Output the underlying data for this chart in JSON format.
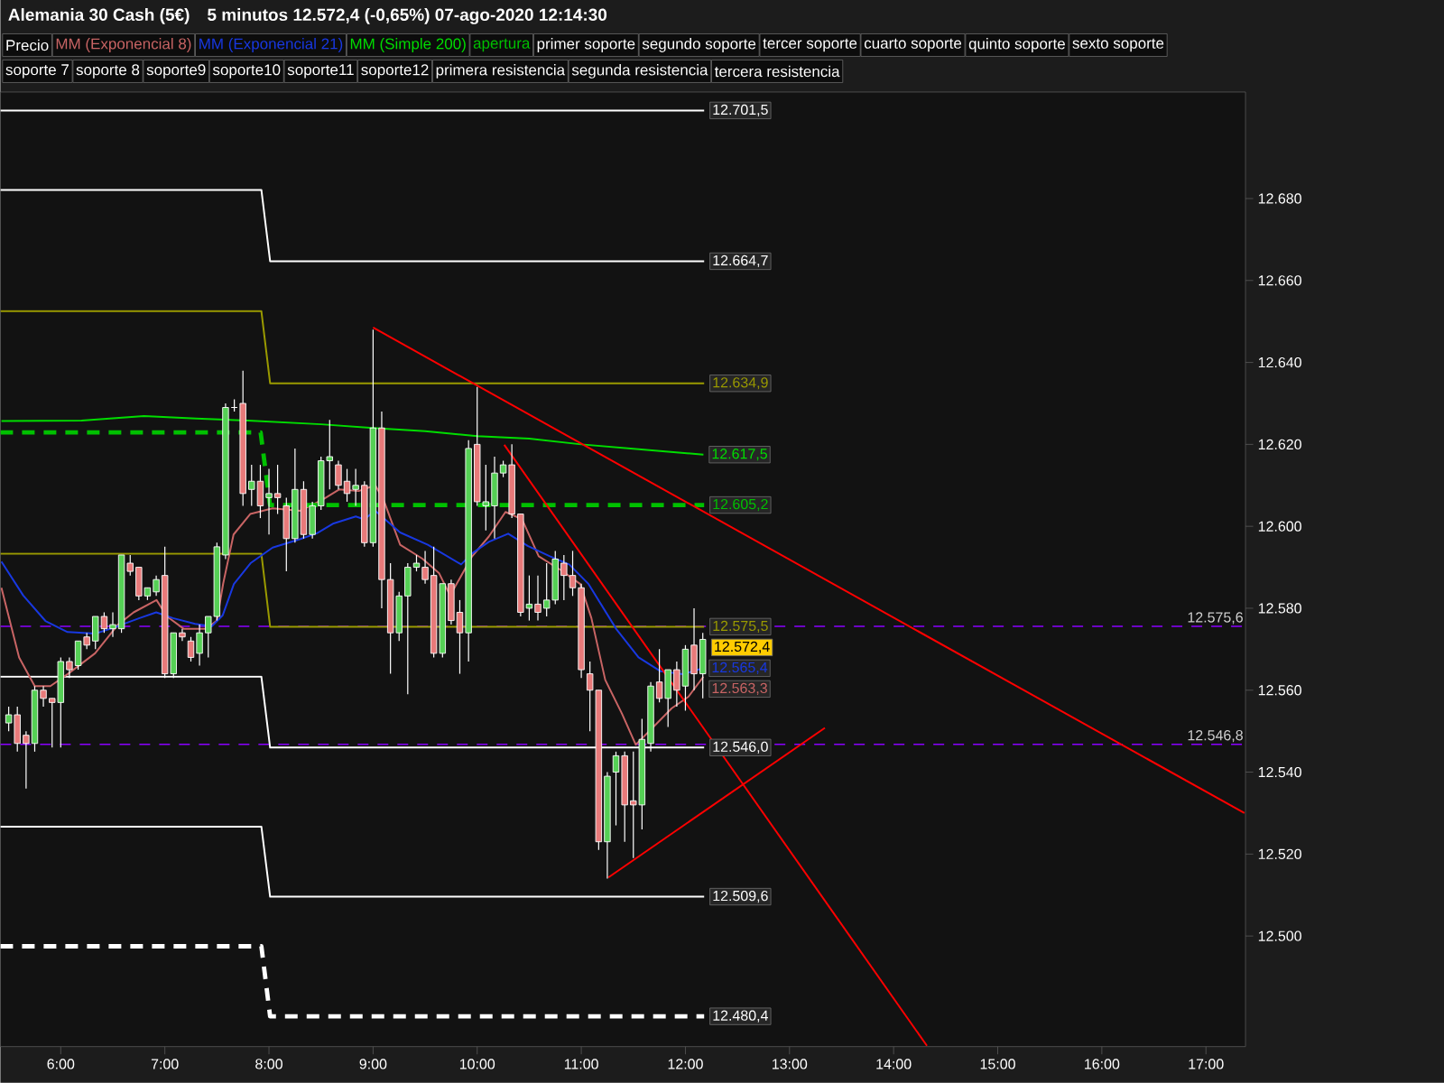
{
  "chart_data": {
    "type": "candlestick",
    "title": "Alemania 30 Cash (5€)",
    "subtitle": "5 minutos   12.572,4 (-0,65%)   07-ago-2020 12:14:30",
    "xlim": [
      5.42,
      17.38
    ],
    "xticks": [
      {
        "value": 6,
        "label": "6:00"
      },
      {
        "value": 7,
        "label": "7:00"
      },
      {
        "value": 8,
        "label": "8:00"
      },
      {
        "value": 9,
        "label": "9:00"
      },
      {
        "value": 10,
        "label": "10:00"
      },
      {
        "value": 11,
        "label": "11:00"
      },
      {
        "value": 12,
        "label": "12:00"
      },
      {
        "value": 13,
        "label": "13:00"
      },
      {
        "value": 14,
        "label": "14:00"
      },
      {
        "value": 15,
        "label": "15:00"
      },
      {
        "value": 16,
        "label": "16:00"
      },
      {
        "value": 17,
        "label": "17:00"
      }
    ],
    "ylim": [
      12473,
      12706
    ],
    "yticks": [
      {
        "value": 12500,
        "label": "12.500"
      },
      {
        "value": 12520,
        "label": "12.520"
      },
      {
        "value": 12540,
        "label": "12.540"
      },
      {
        "value": 12560,
        "label": "12.560"
      },
      {
        "value": 12580,
        "label": "12.580"
      },
      {
        "value": 12600,
        "label": "12.600"
      },
      {
        "value": 12620,
        "label": "12.620"
      },
      {
        "value": 12640,
        "label": "12.640"
      },
      {
        "value": 12660,
        "label": "12.660"
      },
      {
        "value": 12680,
        "label": "12.680"
      }
    ],
    "legend": "top left",
    "series": [
      {
        "type": "line",
        "color": "#ffffff",
        "x": [
          5.42,
          12.18
        ],
        "values": [
          12701.5,
          12701.5
        ],
        "value_labels": [
          null,
          "12.701,5"
        ]
      },
      {
        "type": "line",
        "color": "#ffffff",
        "x": [
          5.42,
          7.927,
          8.011,
          12.18
        ],
        "values": [
          12682.1,
          12682.1,
          12664.7,
          12664.7
        ],
        "value_labels": [
          null,
          null,
          null,
          "12.664,7"
        ]
      },
      {
        "type": "line",
        "color": "#9a9a00",
        "x": [
          5.42,
          7.927,
          8.011,
          12.18
        ],
        "values": [
          12652.5,
          12652.5,
          12634.9,
          12634.9
        ],
        "value_labels": [
          null,
          null,
          null,
          "12.634,9"
        ]
      },
      {
        "type": "line",
        "color": "#9a9a00",
        "x": [
          5.42,
          7.927,
          8.011,
          12.18
        ],
        "values": [
          12593.3,
          12593.3,
          12575.5,
          12575.5
        ],
        "value_labels": [
          null,
          null,
          null,
          "12.575,5"
        ]
      },
      {
        "type": "line",
        "color": "#ffffff",
        "x": [
          5.42,
          7.927,
          8.011,
          12.18
        ],
        "values": [
          12563.3,
          12563.3,
          12546.0,
          12546.0
        ],
        "value_labels": [
          null,
          null,
          null,
          "12.546,0"
        ]
      },
      {
        "type": "line",
        "color": "#ffffff",
        "x": [
          5.42,
          7.927,
          8.011,
          12.18
        ],
        "values": [
          12526.7,
          12526.7,
          12509.6,
          12509.6
        ],
        "value_labels": [
          null,
          null,
          null,
          "12.509,6"
        ]
      },
      {
        "type": "line",
        "color": "#ffffff",
        "line_style": "dashed",
        "x": [
          5.42,
          7.927,
          8.011,
          12.18
        ],
        "values": [
          12497.5,
          12497.5,
          12480.4,
          12480.4
        ],
        "value_labels": [
          null,
          null,
          null,
          "12.480,4"
        ]
      },
      {
        "name": "Precio",
        "color": "#ffffff",
        "x": [
          5.5,
          5.583,
          5.667,
          5.75,
          5.833,
          5.917,
          6,
          6.083,
          6.167,
          6.25,
          6.333,
          6.417,
          6.5,
          6.583,
          6.667,
          6.75,
          6.833,
          6.917,
          7,
          7.083,
          7.167,
          7.25,
          7.333,
          7.417,
          7.5,
          7.583,
          7.667,
          7.75,
          7.833,
          7.917,
          8,
          8.083,
          8.167,
          8.25,
          8.333,
          8.417,
          8.5,
          8.583,
          8.667,
          8.75,
          8.833,
          8.917,
          9,
          9.083,
          9.167,
          9.25,
          9.333,
          9.417,
          9.5,
          9.583,
          9.667,
          9.75,
          9.833,
          9.917,
          10,
          10.083,
          10.167,
          10.25,
          10.333,
          10.417,
          10.5,
          10.583,
          10.667,
          10.75,
          10.833,
          10.917,
          11,
          11.083,
          11.167,
          11.25,
          11.333,
          11.417,
          11.5,
          11.583,
          11.667,
          11.75,
          11.833,
          11.917,
          12,
          12.083,
          12.167
        ],
        "ohlc": [
          [
            12552,
            12556,
            12550,
            12554
          ],
          [
            12554,
            12556,
            12545,
            12547
          ],
          [
            12549,
            12550,
            12536,
            12547
          ],
          [
            12547,
            12561,
            12545,
            12560
          ],
          [
            12560,
            12561,
            12556,
            12558
          ],
          [
            12558,
            12558,
            12546,
            12557
          ],
          [
            12557,
            12568,
            12546,
            12567
          ],
          [
            12567,
            12568,
            12563,
            12565
          ],
          [
            12566,
            12572,
            12565,
            12572
          ],
          [
            12573,
            12574,
            12570,
            12571
          ],
          [
            12572,
            12578,
            12570,
            12578
          ],
          [
            12578,
            12579,
            12574,
            12575
          ],
          [
            12575,
            12579,
            12573,
            12576
          ],
          [
            12575,
            12593,
            12574,
            12593
          ],
          [
            12591,
            12593,
            12588,
            12589
          ],
          [
            12590,
            12590,
            12582,
            12583
          ],
          [
            12583,
            12585,
            12582,
            12585
          ],
          [
            12584,
            12588,
            12583,
            12587
          ],
          [
            12588,
            12595,
            12563,
            12564
          ],
          [
            12564,
            12574,
            12563,
            12574
          ],
          [
            12574,
            12575,
            12572,
            12573
          ],
          [
            12572,
            12573,
            12567,
            12568
          ],
          [
            12569,
            12576,
            12566,
            12574
          ],
          [
            12574,
            12578,
            12568,
            12578
          ],
          [
            12578,
            12596,
            12577,
            12595
          ],
          [
            12593,
            12630,
            12592,
            12629
          ],
          [
            12629,
            12631,
            12628,
            12629
          ],
          [
            12630,
            12638,
            12605,
            12608
          ],
          [
            12609,
            12615,
            12605,
            12611
          ],
          [
            12611,
            12615,
            12602,
            12605
          ],
          [
            12607,
            12614,
            12598,
            12608
          ],
          [
            12608,
            12615,
            12603,
            12607
          ],
          [
            12605,
            12607,
            12589,
            12597
          ],
          [
            12597,
            12619,
            12596,
            12609
          ],
          [
            12609,
            12611,
            12597,
            12598
          ],
          [
            12598,
            12606,
            12597,
            12605
          ],
          [
            12605,
            12617,
            12604,
            12616
          ],
          [
            12616,
            12626,
            12609,
            12617
          ],
          [
            12615,
            12616,
            12609,
            12610
          ],
          [
            12611,
            12614,
            12606,
            12608
          ],
          [
            12609,
            12614,
            12605,
            12610
          ],
          [
            12610,
            12611,
            12595,
            12596
          ],
          [
            12596,
            12648,
            12595,
            12624
          ],
          [
            12624,
            12628,
            12580,
            12587
          ],
          [
            12587,
            12591,
            12564,
            12574
          ],
          [
            12574,
            12584,
            12572,
            12583
          ],
          [
            12583,
            12591,
            12559,
            12590
          ],
          [
            12590,
            12593,
            12589,
            12591
          ],
          [
            12590,
            12594,
            12586,
            12587
          ],
          [
            12588,
            12595,
            12568,
            12569
          ],
          [
            12569,
            12586,
            12568,
            12586
          ],
          [
            12586,
            12587,
            12576,
            12577
          ],
          [
            12579,
            12582,
            12564,
            12574
          ],
          [
            12574,
            12621,
            12567,
            12619
          ],
          [
            12620,
            12634,
            12605,
            12606
          ],
          [
            12605,
            12615,
            12599,
            12606
          ],
          [
            12605,
            12617,
            12597,
            12613
          ],
          [
            12613,
            12616,
            12612,
            12615
          ],
          [
            12615,
            12620,
            12602,
            12603
          ],
          [
            12603,
            12603,
            12578,
            12579
          ],
          [
            12580,
            12588,
            12577,
            12581
          ],
          [
            12581,
            12588,
            12577,
            12579
          ],
          [
            12580,
            12591,
            12578,
            12582
          ],
          [
            12582,
            12594,
            12581,
            12592
          ],
          [
            12591,
            12593,
            12582,
            12588
          ],
          [
            12588,
            12594,
            12583,
            12585
          ],
          [
            12585,
            12586,
            12563,
            12565
          ],
          [
            12564,
            12567,
            12550,
            12560
          ],
          [
            12560,
            12560,
            12521,
            12523
          ],
          [
            12523,
            12540,
            12514,
            12539
          ],
          [
            12540,
            12545,
            12527,
            12544
          ],
          [
            12544,
            12545,
            12523,
            12532
          ],
          [
            12533,
            12545,
            12519,
            12532
          ],
          [
            12532,
            12553,
            12526,
            12548
          ],
          [
            12547,
            12562,
            12545,
            12561
          ],
          [
            12562,
            12570,
            12557,
            12558
          ],
          [
            12558,
            12565,
            12551,
            12565
          ],
          [
            12565,
            12567,
            12556,
            12560
          ],
          [
            12561,
            12571,
            12555,
            12570
          ],
          [
            12571,
            12580,
            12560,
            12564
          ],
          [
            12564,
            12574,
            12558,
            12572.4
          ]
        ],
        "value_labels": [
          null,
          null,
          null,
          null,
          null,
          null,
          null,
          null,
          null,
          null,
          null,
          null,
          null,
          null,
          null,
          null,
          null,
          null,
          null,
          null,
          null,
          null,
          null,
          null,
          null,
          null,
          null,
          null,
          null,
          null,
          null,
          null,
          null,
          null,
          null,
          null,
          null,
          null,
          null,
          null,
          null,
          null,
          null,
          null,
          null,
          null,
          null,
          null,
          null,
          null,
          null,
          null,
          null,
          null,
          null,
          null,
          null,
          null,
          null,
          null,
          null,
          null,
          null,
          null,
          null,
          null,
          null,
          null,
          null,
          null,
          null,
          null,
          null,
          null,
          null,
          null,
          null,
          null,
          null,
          null,
          "12.572,4"
        ]
      },
      {
        "type": "line",
        "name": "MM (Exponencial 8)",
        "color": "#c86464",
        "x": [
          5.43,
          5.6,
          5.75,
          5.9,
          6.07,
          6.33,
          6.55,
          6.7,
          6.92,
          7.02,
          7.18,
          7.4,
          7.5,
          7.56,
          7.66,
          7.82,
          8.035,
          8.3,
          8.515,
          8.674,
          8.861,
          9.021,
          9.1,
          9.26,
          9.473,
          9.633,
          9.74,
          9.952,
          10.112,
          10.272,
          10.431,
          10.591,
          10.804,
          10.99,
          11.097,
          11.23,
          11.39,
          11.523,
          11.656,
          11.869,
          12.029,
          12.173
        ],
        "values": [
          12585,
          12568,
          12561,
          12561,
          12564,
          12569,
          12576,
          12579,
          12582,
          12578,
          12575,
          12575,
          12577,
          12586,
          12598,
          12603,
          12604.4,
          12603.8,
          12606.5,
          12609,
          12608.6,
          12610,
          12606.5,
          12595.5,
          12592.1,
          12588.6,
          12583.1,
          12592.7,
          12597.5,
          12603.5,
          12601.7,
          12592.7,
          12589.3,
          12585.9,
          12577.6,
          12562.5,
          12554.3,
          12546.7,
          12550.1,
          12555.6,
          12558.4,
          12563.3
        ],
        "value_labels": [
          null,
          null,
          null,
          null,
          null,
          null,
          null,
          null,
          null,
          null,
          null,
          null,
          null,
          null,
          null,
          null,
          null,
          null,
          null,
          null,
          null,
          null,
          null,
          null,
          null,
          null,
          null,
          null,
          null,
          null,
          null,
          null,
          null,
          null,
          null,
          null,
          null,
          null,
          null,
          null,
          null,
          "12.563,3"
        ]
      },
      {
        "type": "line",
        "name": "MM (Exponencial 21)",
        "color": "#1838e0",
        "x": [
          5.43,
          5.64,
          5.853,
          6.065,
          6.332,
          6.545,
          6.757,
          6.917,
          7.077,
          7.29,
          7.45,
          7.556,
          7.663,
          7.823,
          8.035,
          8.302,
          8.461,
          8.621,
          8.834,
          8.914,
          9.021,
          9.26,
          9.526,
          9.846,
          9.952,
          10.112,
          10.298,
          10.485,
          10.698,
          10.884,
          11.07,
          11.337,
          11.55,
          11.762,
          11.975,
          12.173
        ],
        "values": [
          12591.4,
          12583.1,
          12576.9,
          12574.2,
          12573.8,
          12575.6,
          12577.6,
          12579,
          12577.6,
          12576.2,
          12575.6,
          12578.3,
          12585.9,
          12591,
          12594.8,
          12596.9,
          12598.3,
          12600.7,
          12602.4,
          12601.7,
          12603.8,
          12598.5,
          12595.5,
          12590.7,
          12593.4,
          12596.2,
          12598.2,
          12595.2,
          12592.7,
          12590.7,
          12585.9,
          12574.9,
          12568,
          12564.6,
          12563.9,
          12565.4
        ],
        "value_labels": [
          null,
          null,
          null,
          null,
          null,
          null,
          null,
          null,
          null,
          null,
          null,
          null,
          null,
          null,
          null,
          null,
          null,
          null,
          null,
          null,
          null,
          null,
          null,
          null,
          null,
          null,
          null,
          null,
          null,
          null,
          null,
          null,
          null,
          null,
          null,
          "12.565,4"
        ]
      },
      {
        "type": "line",
        "name": "MM (Simple 200)",
        "color": "#00dd00",
        "x": [
          5.43,
          6.2,
          6.8,
          7.3,
          7.8,
          8.5,
          9,
          9.5,
          10,
          10.5,
          11,
          11.5,
          12.173
        ],
        "values": [
          12625.7,
          12625.8,
          12626.9,
          12626.3,
          12625.8,
          12624.9,
          12624,
          12623.2,
          12622,
          12621.4,
          12620,
          12618.9,
          12617.5
        ],
        "value_labels": [
          null,
          null,
          null,
          null,
          null,
          null,
          null,
          null,
          null,
          null,
          null,
          null,
          "12.617,5"
        ]
      },
      {
        "type": "line",
        "name": "apertura",
        "color": "#00c000",
        "line_style": "dashed",
        "x": [
          5.42,
          7.92,
          8.01,
          12.18
        ],
        "values": [
          12622.9,
          12622.9,
          12605.2,
          12605.2
        ],
        "value_labels": [
          null,
          null,
          null,
          "12.605,2"
        ]
      },
      {
        "type": "line",
        "color": "#ff0000",
        "x": [
          9.0,
          17.37
        ],
        "values": [
          12648.5,
          12530
        ]
      },
      {
        "type": "line",
        "color": "#ff0000",
        "x": [
          10.26,
          14.32
        ],
        "values": [
          12619.9,
          12473.2
        ]
      },
      {
        "type": "line",
        "color": "#ff0000",
        "x": [
          11.26,
          13.34
        ],
        "values": [
          12514.3,
          12550.8
        ]
      }
    ],
    "ref_lines": [
      {
        "axis": "y",
        "value": 12575.6,
        "label": "12.575,6",
        "color": "#8a00ff",
        "line_style": "dashed"
      },
      {
        "axis": "y",
        "value": 12546.8,
        "label": "12.546,8",
        "color": "#8a00ff",
        "line_style": "dashed"
      }
    ],
    "annotations": [
      "primer soporte",
      "segundo soporte",
      "tercer soporte",
      "cuarto soporte",
      "quinto soporte",
      "sexto soporte",
      "soporte 7",
      "soporte 8",
      "soporte9",
      "soporte10",
      "soporte11",
      "soporte12",
      "primera resistencia",
      "segunda resistencia",
      "tercera resistencia"
    ]
  }
}
